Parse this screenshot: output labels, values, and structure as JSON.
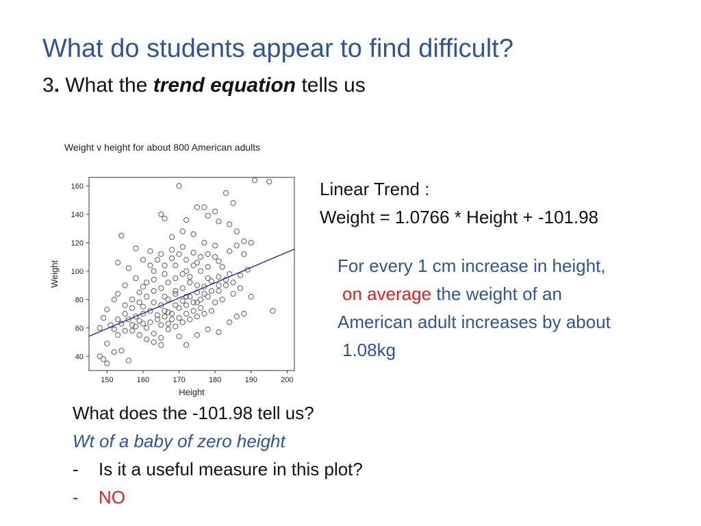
{
  "slide": {
    "title": "What do students appear to find difficult?",
    "subtitle": {
      "number": "3",
      "dot": ".",
      "pre": " What the ",
      "emph": "trend equation",
      "post": " tells us"
    }
  },
  "trend": {
    "label": "Linear Trend :",
    "equation": "Weight = 1.0766 * Height + -101.98"
  },
  "interpretation": {
    "line1": "For every 1 cm increase in height,",
    "line2_red": "on average",
    "line2_rest": " the weight of an",
    "line3": "American adult increases by about",
    "line4": "1.08kg"
  },
  "qa": {
    "question": "What does the -101.98 tell us?",
    "answer": "Wt of a baby of zero height",
    "bullet1_dash": "-",
    "bullet1": "Is it a useful measure in this plot?",
    "bullet2_dash": "-",
    "bullet2": "NO"
  },
  "colors": {
    "title": "#2f5597",
    "accent_red": "#e02020",
    "trend_line": "#2020c8",
    "points": "#666666"
  },
  "chart_data": {
    "type": "scatter",
    "title": "Weight v height for about 800 American adults",
    "xlabel": "Height",
    "ylabel": "Weight",
    "xlim": [
      145,
      202
    ],
    "ylim": [
      30,
      166
    ],
    "xticks": [
      150,
      160,
      170,
      180,
      190,
      200
    ],
    "yticks": [
      40,
      60,
      80,
      100,
      120,
      140,
      160
    ],
    "trend": {
      "slope": 1.0766,
      "intercept": -101.98
    },
    "points_note_count": 800,
    "points": [
      [
        195,
        163
      ],
      [
        191,
        164
      ],
      [
        178,
        139
      ],
      [
        180,
        142
      ],
      [
        175,
        145
      ],
      [
        183,
        155
      ],
      [
        185,
        148
      ],
      [
        170,
        160
      ],
      [
        177,
        145
      ],
      [
        165,
        140
      ],
      [
        166,
        137
      ],
      [
        172,
        136
      ],
      [
        181,
        135
      ],
      [
        184,
        133
      ],
      [
        154,
        125
      ],
      [
        168,
        124
      ],
      [
        158,
        116
      ],
      [
        171,
        128
      ],
      [
        174,
        126
      ],
      [
        186,
        128
      ],
      [
        188,
        121
      ],
      [
        190,
        120
      ],
      [
        180,
        118
      ],
      [
        177,
        120
      ],
      [
        156,
        102
      ],
      [
        160,
        108
      ],
      [
        162,
        104
      ],
      [
        165,
        112
      ],
      [
        168,
        115
      ],
      [
        171,
        117
      ],
      [
        174,
        113
      ],
      [
        176,
        110
      ],
      [
        153,
        84
      ],
      [
        152,
        80
      ],
      [
        155,
        90
      ],
      [
        158,
        95
      ],
      [
        160,
        89
      ],
      [
        163,
        100
      ],
      [
        166,
        98
      ],
      [
        169,
        104
      ],
      [
        172,
        100
      ],
      [
        175,
        106
      ],
      [
        178,
        103
      ],
      [
        181,
        107
      ],
      [
        184,
        98
      ],
      [
        187,
        97
      ],
      [
        189,
        101
      ],
      [
        196,
        72
      ],
      [
        148,
        40
      ],
      [
        149,
        38
      ],
      [
        150,
        35
      ],
      [
        152,
        43
      ],
      [
        154,
        44
      ],
      [
        156,
        37
      ],
      [
        150,
        49
      ],
      [
        153,
        55
      ],
      [
        155,
        58
      ],
      [
        157,
        62
      ],
      [
        159,
        65
      ],
      [
        161,
        60
      ],
      [
        163,
        56
      ],
      [
        165,
        53
      ],
      [
        167,
        59
      ],
      [
        170,
        54
      ],
      [
        172,
        48
      ],
      [
        175,
        55
      ],
      [
        178,
        59
      ],
      [
        181,
        57
      ],
      [
        184,
        64
      ],
      [
        186,
        68
      ],
      [
        188,
        70
      ],
      [
        190,
        82
      ],
      [
        151,
        62
      ],
      [
        153,
        66
      ],
      [
        155,
        70
      ],
      [
        157,
        74
      ],
      [
        159,
        78
      ],
      [
        161,
        82
      ],
      [
        163,
        86
      ],
      [
        165,
        76
      ],
      [
        167,
        80
      ],
      [
        169,
        84
      ],
      [
        171,
        88
      ],
      [
        173,
        92
      ],
      [
        175,
        85
      ],
      [
        177,
        89
      ],
      [
        179,
        93
      ],
      [
        181,
        86
      ],
      [
        183,
        90
      ],
      [
        185,
        84
      ],
      [
        160,
        70
      ],
      [
        162,
        72
      ],
      [
        164,
        66
      ],
      [
        166,
        68
      ],
      [
        168,
        70
      ],
      [
        170,
        74
      ],
      [
        172,
        76
      ],
      [
        174,
        78
      ],
      [
        176,
        80
      ],
      [
        178,
        82
      ],
      [
        180,
        78
      ],
      [
        182,
        80
      ],
      [
        158,
        68
      ],
      [
        160,
        63
      ],
      [
        162,
        64
      ],
      [
        164,
        69
      ],
      [
        166,
        72
      ],
      [
        168,
        66
      ],
      [
        170,
        67
      ],
      [
        172,
        70
      ],
      [
        174,
        72
      ],
      [
        176,
        74
      ],
      [
        160,
        75
      ],
      [
        163,
        78
      ],
      [
        166,
        82
      ],
      [
        169,
        86
      ],
      [
        172,
        82
      ],
      [
        175,
        90
      ],
      [
        178,
        95
      ],
      [
        181,
        96
      ],
      [
        157,
        58
      ],
      [
        159,
        55
      ],
      [
        161,
        52
      ],
      [
        163,
        50
      ],
      [
        165,
        48
      ],
      [
        167,
        63
      ],
      [
        169,
        61
      ],
      [
        171,
        64
      ],
      [
        173,
        66
      ],
      [
        175,
        68
      ],
      [
        177,
        70
      ],
      [
        179,
        72
      ],
      [
        155,
        76
      ],
      [
        157,
        80
      ],
      [
        159,
        85
      ],
      [
        161,
        92
      ],
      [
        163,
        94
      ],
      [
        165,
        88
      ],
      [
        167,
        92
      ],
      [
        169,
        95
      ],
      [
        171,
        98
      ],
      [
        173,
        96
      ],
      [
        162,
        114
      ],
      [
        164,
        108
      ],
      [
        166,
        104
      ],
      [
        168,
        109
      ],
      [
        170,
        112
      ],
      [
        172,
        108
      ],
      [
        174,
        104
      ],
      [
        176,
        100
      ],
      [
        178,
        112
      ],
      [
        180,
        110
      ],
      [
        182,
        103
      ],
      [
        184,
        114
      ],
      [
        186,
        118
      ],
      [
        188,
        112
      ],
      [
        153,
        106
      ],
      [
        150,
        73
      ],
      [
        149,
        67
      ],
      [
        148,
        60
      ],
      [
        152,
        59
      ],
      [
        154,
        63
      ],
      [
        156,
        66
      ],
      [
        158,
        61
      ],
      [
        165,
        62
      ],
      [
        167,
        71
      ],
      [
        169,
        76
      ],
      [
        171,
        79
      ],
      [
        173,
        82
      ],
      [
        175,
        78
      ],
      [
        177,
        84
      ],
      [
        179,
        86
      ],
      [
        181,
        90
      ],
      [
        183,
        94
      ],
      [
        185,
        92
      ],
      [
        187,
        88
      ]
    ]
  }
}
